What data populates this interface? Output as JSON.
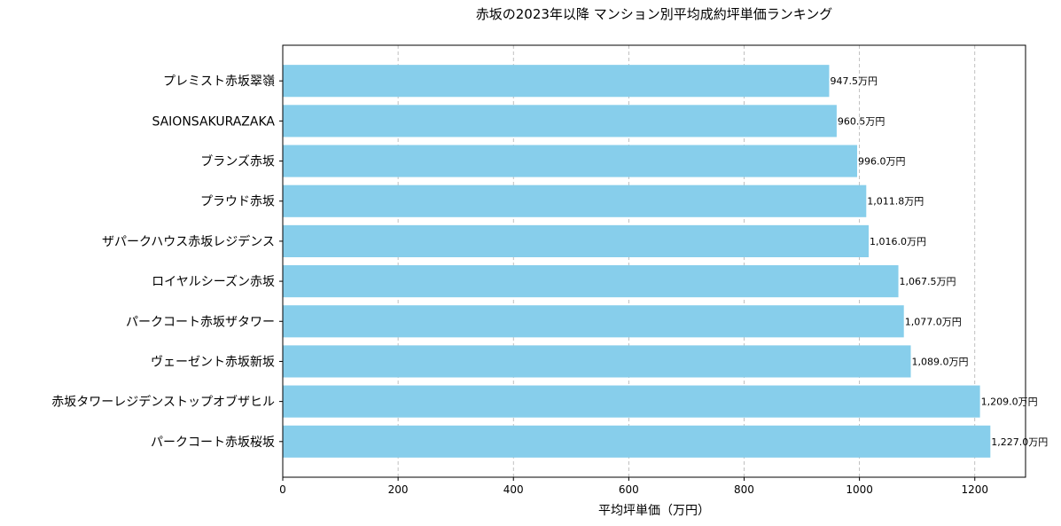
{
  "chart_data": {
    "type": "bar",
    "orientation": "horizontal",
    "title": "赤坂の2023年以降 マンション別平均成約坪単価ランキング",
    "xlabel": "平均坪単価（万円）",
    "ylabel": "",
    "categories": [
      "プレミスト赤坂翠嶺",
      "SAIONSAKURAZAKA",
      "ブランズ赤坂",
      "プラウド赤坂",
      "ザパークハウス赤坂レジデンス",
      "ロイヤルシーズン赤坂",
      "パークコート赤坂ザタワー",
      "ヴェーゼント赤坂新坂",
      "赤坂タワーレジデンストップオブザヒル",
      "パークコート赤坂桜坂"
    ],
    "values": [
      947.5,
      960.5,
      996.0,
      1011.8,
      1016.0,
      1067.5,
      1077.0,
      1089.0,
      1209.0,
      1227.0
    ],
    "data_labels": [
      "947.5万円",
      "960.5万円",
      "996.0万円",
      "1,011.8万円",
      "1,016.0万円",
      "1,067.5万円",
      "1,077.0万円",
      "1,089.0万円",
      "1,209.0万円",
      "1,227.0万円"
    ],
    "xlim": [
      0,
      1288
    ],
    "xticks": [
      0,
      200,
      400,
      600,
      800,
      1000,
      1200
    ],
    "xtick_labels": [
      "0",
      "200",
      "400",
      "600",
      "800",
      "1000",
      "1200"
    ],
    "grid": "x-axis dashed",
    "bar_color": "#87CEEB"
  }
}
